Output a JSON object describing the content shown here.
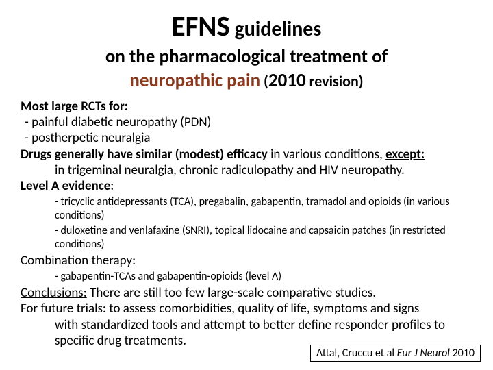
{
  "title": {
    "efns": "EFNS",
    "guidelines": " guidelines",
    "line2": "on the pharmacological treatment of",
    "np": "neuropathic pain",
    "rev_open": " (",
    "year": "2010",
    "rev_tail": " revision)"
  },
  "body": {
    "rcts_label": "Most large RCTs for:",
    "rcts_1": " - painful diabetic neuropathy (PDN)",
    "rcts_2": " - postherpetic neuralgia",
    "drugs_1": "Drugs generally have ",
    "drugs_2": "similar (modest) efficacy",
    "drugs_3": " in various conditions, ",
    "drugs_4": "except:",
    "drugs_tail": "in trigeminal neuralgia, chronic radiculopathy and HIV neuropathy.",
    "levelA_label": "Level A evidence",
    "levelA_colon": ":",
    "levelA_1": "- tricyclic antidepressants (TCA), pregabalin, gabapentin, tramadol and opioids (in various conditions)",
    "levelA_2": "- duloxetine and venlafaxine (SNRI), topical lidocaine and capsaicin patches (in restricted conditions)",
    "combo_label": "Combination therapy:",
    "combo_1": "- gabapentin-TCAs  and gabapentin-opioids (level A)",
    "conc_label": "Conclusions:",
    "conc_tail": " There are still too few large-scale comparative studies.",
    "future_lead": "For future trials: to assess comorbidities, quality of life, symptoms and signs",
    "future_tail": "with standardized tools and attempt to better define responder profiles to specific drug treatments."
  },
  "citation": {
    "authors": "Attal, Cruccu et al ",
    "journal": "Eur J Neurol ",
    "year": "2010"
  },
  "colors": {
    "brown": "#8b3a1e",
    "text": "#000000",
    "bg": "#ffffff"
  }
}
